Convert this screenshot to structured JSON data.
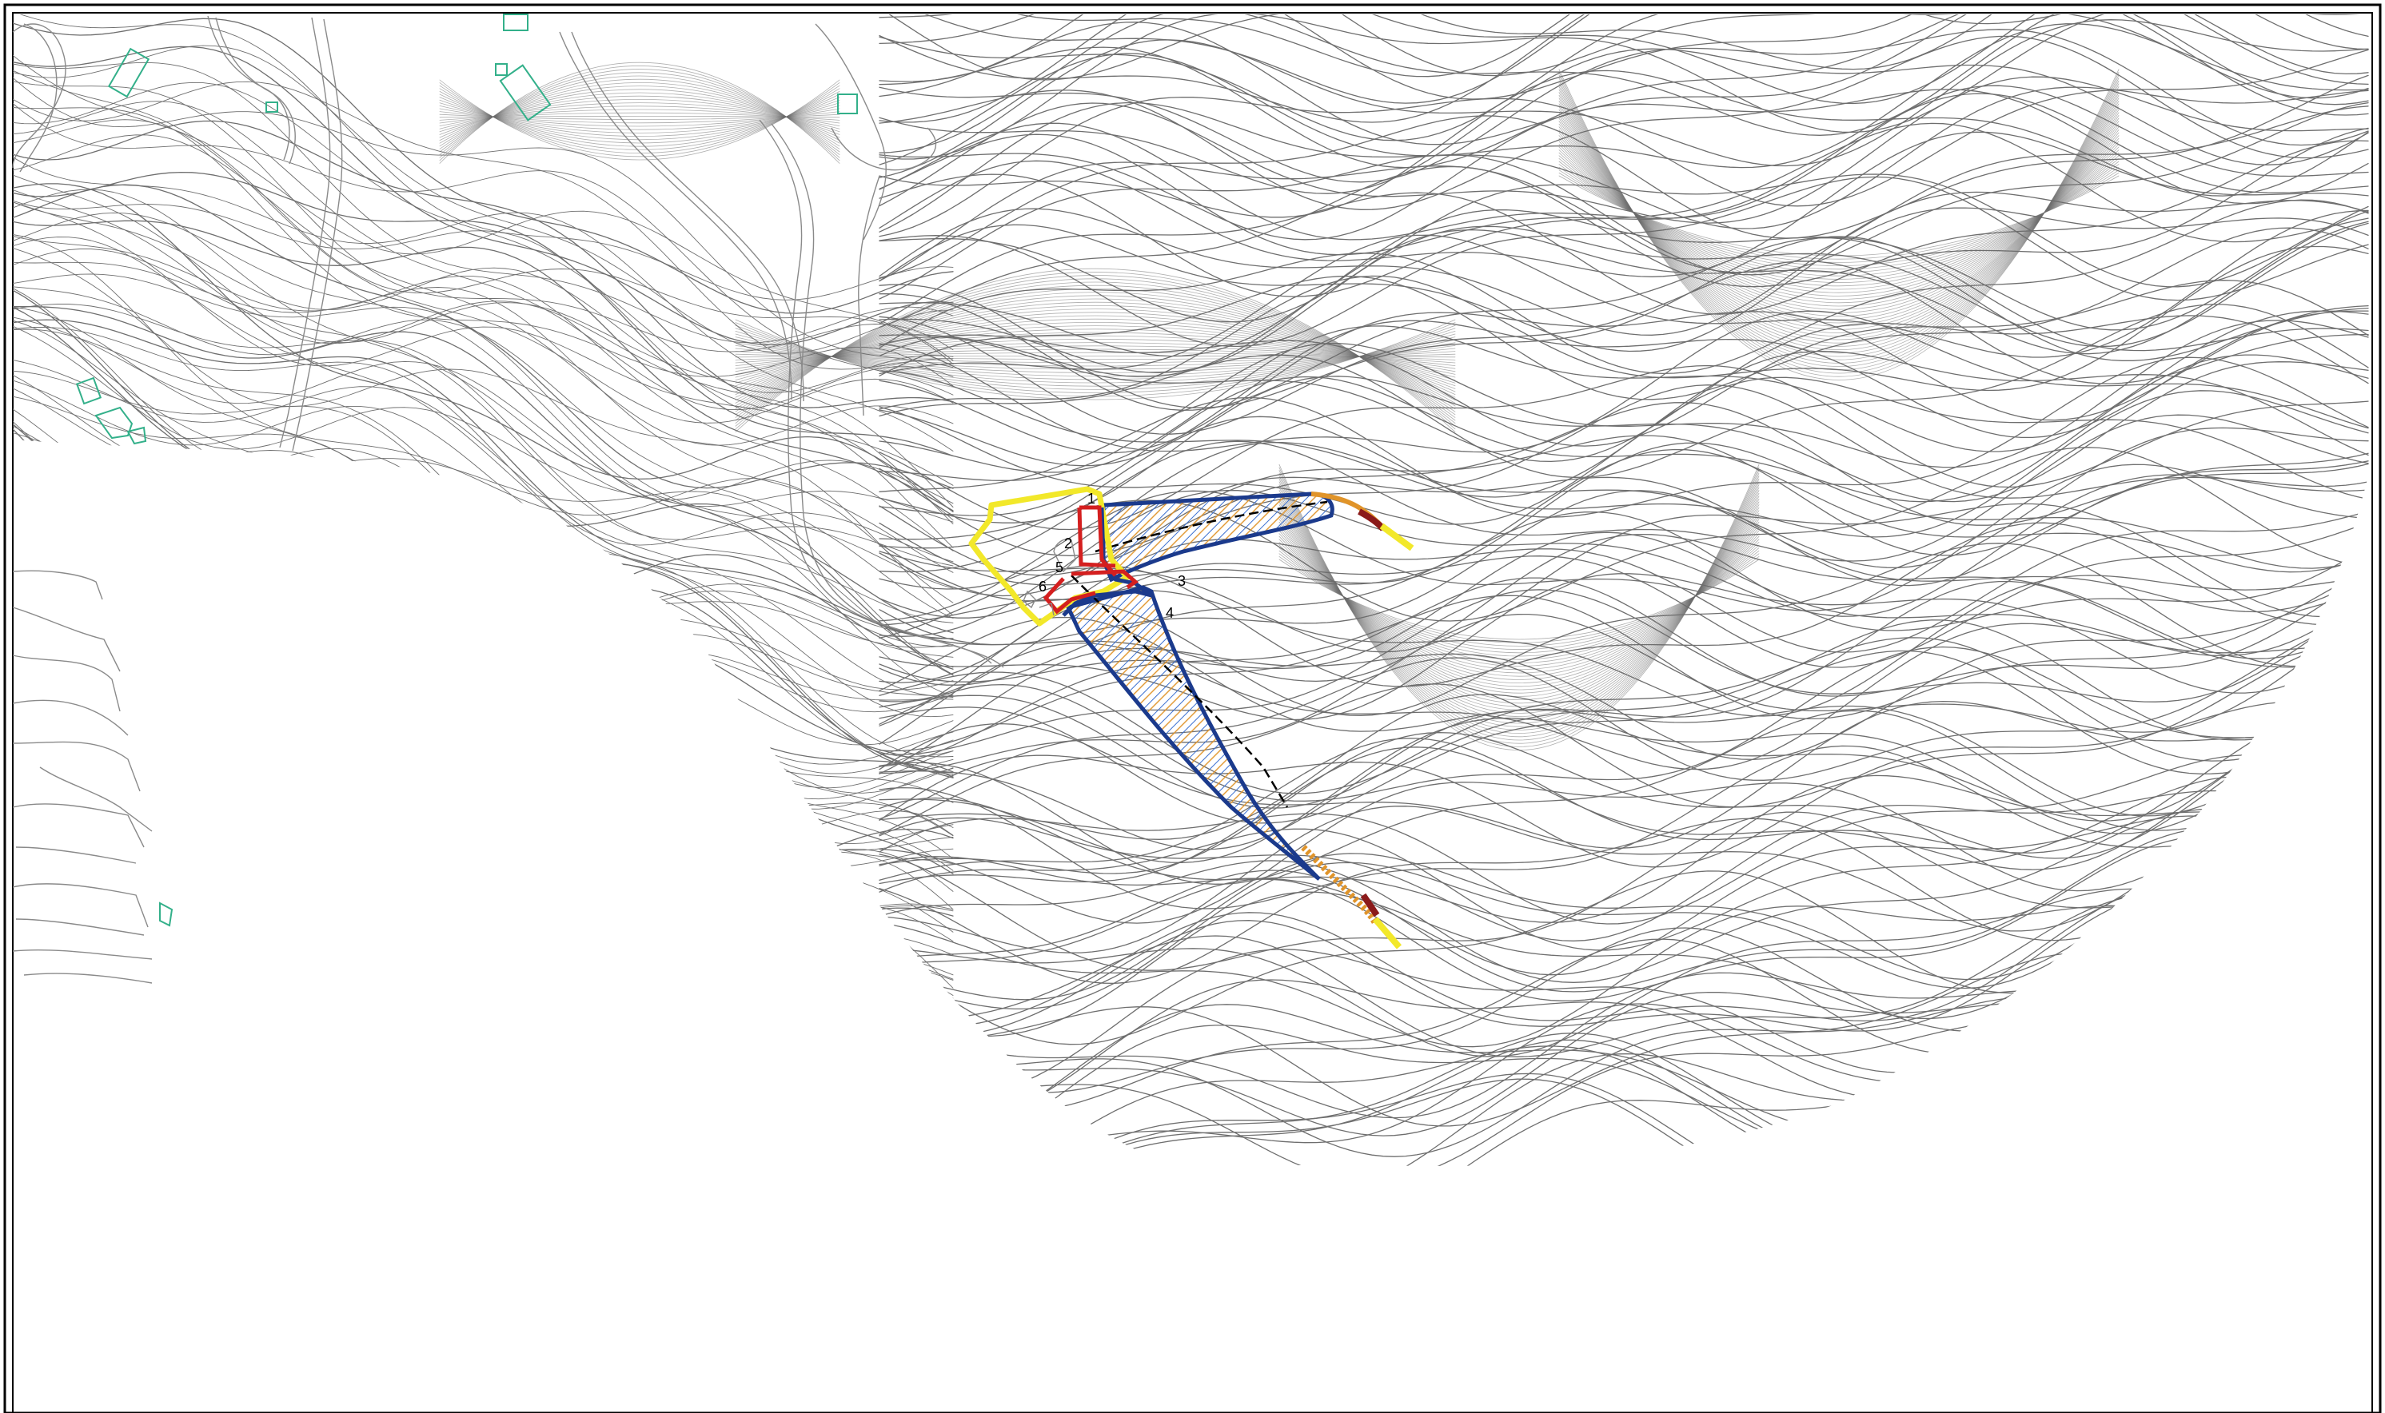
{
  "map": {
    "zones": [
      {
        "id": "zone-1",
        "label": "1"
      },
      {
        "id": "zone-2",
        "label": "2"
      },
      {
        "id": "zone-3",
        "label": "3"
      },
      {
        "id": "zone-4",
        "label": "4"
      },
      {
        "id": "zone-5",
        "label": "5"
      },
      {
        "id": "zone-6",
        "label": "6"
      }
    ],
    "colors": {
      "contour": "#6e6e6e",
      "building": "#33b08a",
      "boundary_yellow": "#f2e82a",
      "boundary_red": "#d41f1f",
      "outline_blue": "#1b3a8c",
      "hatch_blue": "#3a6fd0",
      "hatch_orange": "#e0942a",
      "centerline": "#000000",
      "frame": "#000000"
    },
    "icons": [
      "contour-map",
      "building-footprint",
      "hatched-channel"
    ]
  }
}
